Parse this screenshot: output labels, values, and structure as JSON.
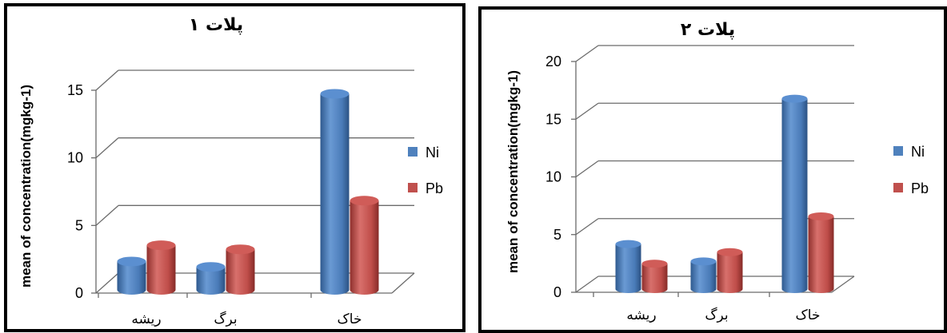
{
  "chart_data": [
    {
      "type": "bar",
      "title": "پلات ۱",
      "ylabel": "mean of concentration(mgkg-1)",
      "categories": [
        "ریشه",
        "برگ",
        "خاک"
      ],
      "series": [
        {
          "name": "Ni",
          "values": [
            2.1,
            1.7,
            14.5
          ]
        },
        {
          "name": "Pb",
          "values": [
            3.3,
            3.0,
            6.6
          ]
        }
      ],
      "ylim": [
        0,
        15
      ],
      "yticks": [
        "0",
        "5",
        "10",
        "15"
      ],
      "grid": true,
      "legend": "right",
      "colors": {
        "Ni": "#4F81BD",
        "Pb": "#C0504D"
      }
    },
    {
      "type": "bar",
      "title": "پلات ۲",
      "ylabel": "mean of concentration(mgkg-1)",
      "categories": [
        "ریشه",
        "برگ",
        "خاک"
      ],
      "series": [
        {
          "name": "Ni",
          "values": [
            3.9,
            2.4,
            16.5
          ]
        },
        {
          "name": "Pb",
          "values": [
            2.2,
            3.2,
            6.3
          ]
        }
      ],
      "ylim": [
        0,
        20
      ],
      "yticks": [
        "0",
        "5",
        "10",
        "15",
        "20"
      ],
      "grid": true,
      "legend": "right",
      "colors": {
        "Ni": "#4F81BD",
        "Pb": "#C0504D"
      }
    }
  ]
}
